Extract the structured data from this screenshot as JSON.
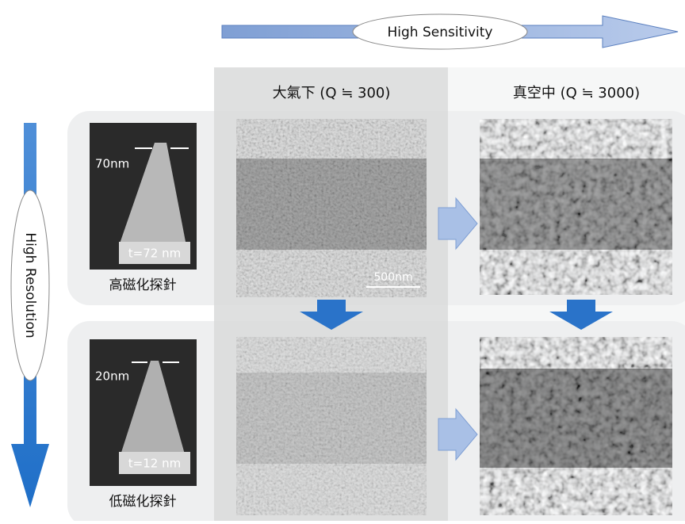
{
  "header": {
    "sensitivity_label": "High Sensitivity"
  },
  "side": {
    "resolution_label": "High Resolution"
  },
  "columns": [
    "大氣下 (Q ≒ 300)",
    "真空中 (Q ≒ 3000)"
  ],
  "rows": [
    {
      "probe_label": "高磁化探針",
      "tip_width": "70nm",
      "thickness": "t=72 nm"
    },
    {
      "probe_label": "低磁化探針",
      "tip_width": "20nm",
      "thickness": "t=12 nm"
    }
  ],
  "scale_bar": "500nm"
}
